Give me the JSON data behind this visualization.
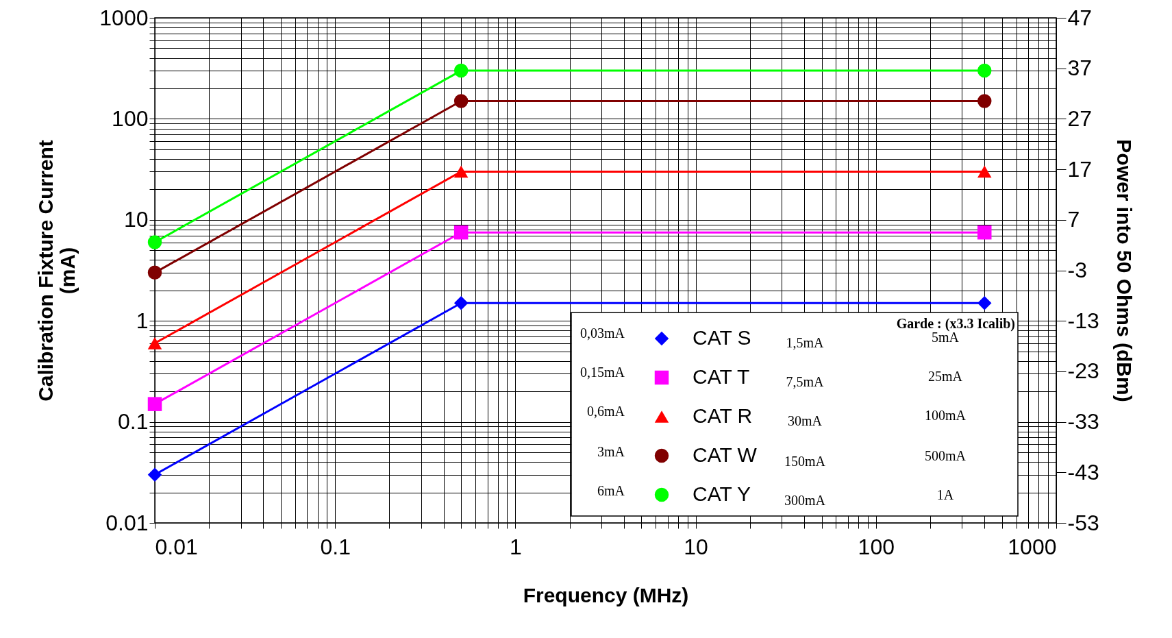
{
  "chart_data": {
    "type": "line",
    "xlabel": "Frequency (MHz)",
    "ylabel": "Calibration Fixture Current (mA)",
    "y2label": "Power into 50 Ohms (dBm)",
    "x": [
      0.01,
      0.5,
      400
    ],
    "series": [
      {
        "name": "CAT S",
        "color": "#0000ff",
        "marker": "diamond",
        "values": [
          0.03,
          1.5,
          1.5
        ]
      },
      {
        "name": "CAT T",
        "color": "#ff00ff",
        "marker": "square",
        "values": [
          0.15,
          7.5,
          7.5
        ]
      },
      {
        "name": "CAT R",
        "color": "#ff0000",
        "marker": "triangle",
        "values": [
          0.6,
          30,
          30
        ]
      },
      {
        "name": "CAT W",
        "color": "#800000",
        "marker": "circle",
        "values": [
          3,
          150,
          150
        ]
      },
      {
        "name": "CAT Y",
        "color": "#00ff00",
        "marker": "circle",
        "values": [
          6,
          300,
          300
        ]
      }
    ],
    "log": "xy",
    "grid": true,
    "legend": "bottom right",
    "line_style": "solid",
    "xlim": [
      0.01,
      1000
    ],
    "xticks": [
      0.01,
      {
        "value": 0.02,
        "label": null
      },
      {
        "value": 0.03,
        "label": null
      },
      {
        "value": 0.04,
        "label": null
      },
      {
        "value": 0.05,
        "label": null
      },
      {
        "value": 0.06,
        "label": null
      },
      {
        "value": 0.07,
        "label": null
      },
      {
        "value": 0.08,
        "label": null
      },
      {
        "value": 0.09,
        "label": null
      },
      0.1,
      {
        "value": 0.2,
        "label": null
      },
      {
        "value": 0.3,
        "label": null
      },
      {
        "value": 0.4,
        "label": null
      },
      {
        "value": 0.5,
        "label": null
      },
      {
        "value": 0.6,
        "label": null
      },
      {
        "value": 0.7,
        "label": null
      },
      {
        "value": 0.8,
        "label": null
      },
      {
        "value": 0.9,
        "label": null
      },
      1,
      {
        "value": 2,
        "label": null
      },
      {
        "value": 3,
        "label": null
      },
      {
        "value": 4,
        "label": null
      },
      {
        "value": 5,
        "label": null
      },
      {
        "value": 6,
        "label": null
      },
      {
        "value": 7,
        "label": null
      },
      {
        "value": 8,
        "label": null
      },
      {
        "value": 9,
        "label": null
      },
      10,
      {
        "value": 20,
        "label": null
      },
      {
        "value": 30,
        "label": null
      },
      {
        "value": 40,
        "label": null
      },
      {
        "value": 50,
        "label": null
      },
      {
        "value": 60,
        "label": null
      },
      {
        "value": 70,
        "label": null
      },
      {
        "value": 80,
        "label": null
      },
      {
        "value": 90,
        "label": null
      },
      100,
      {
        "value": 200,
        "label": null
      },
      {
        "value": 300,
        "label": null
      },
      {
        "value": 400,
        "label": null
      },
      {
        "value": 500,
        "label": null
      },
      {
        "value": 600,
        "label": null
      },
      {
        "value": 700,
        "label": null
      },
      {
        "value": 800,
        "label": null
      },
      {
        "value": 900,
        "label": null
      },
      1000
    ],
    "ylim": [
      0.01,
      1000
    ],
    "yticks": [
      0.01,
      {
        "value": 0.02,
        "label": null
      },
      {
        "value": 0.03,
        "label": null
      },
      {
        "value": 0.04,
        "label": null
      },
      {
        "value": 0.05,
        "label": null
      },
      {
        "value": 0.06,
        "label": null
      },
      {
        "value": 0.07,
        "label": null
      },
      {
        "value": 0.08,
        "label": null
      },
      {
        "value": 0.09,
        "label": null
      },
      0.1,
      {
        "value": 0.2,
        "label": null
      },
      {
        "value": 0.3,
        "label": null
      },
      {
        "value": 0.4,
        "label": null
      },
      {
        "value": 0.5,
        "label": null
      },
      {
        "value": 0.6,
        "label": null
      },
      {
        "value": 0.7,
        "label": null
      },
      {
        "value": 0.8,
        "label": null
      },
      {
        "value": 0.9,
        "label": null
      },
      1,
      {
        "value": 2,
        "label": null
      },
      {
        "value": 3,
        "label": null
      },
      {
        "value": 4,
        "label": null
      },
      {
        "value": 5,
        "label": null
      },
      {
        "value": 6,
        "label": null
      },
      {
        "value": 7,
        "label": null
      },
      {
        "value": 8,
        "label": null
      },
      {
        "value": 9,
        "label": null
      },
      10,
      {
        "value": 20,
        "label": null
      },
      {
        "value": 30,
        "label": null
      },
      {
        "value": 40,
        "label": null
      },
      {
        "value": 50,
        "label": null
      },
      {
        "value": 60,
        "label": null
      },
      {
        "value": 70,
        "label": null
      },
      {
        "value": 80,
        "label": null
      },
      {
        "value": 90,
        "label": null
      },
      100,
      {
        "value": 200,
        "label": null
      },
      {
        "value": 300,
        "label": null
      },
      {
        "value": 400,
        "label": null
      },
      {
        "value": 500,
        "label": null
      },
      {
        "value": 600,
        "label": null
      },
      {
        "value": 700,
        "label": null
      },
      {
        "value": 800,
        "label": null
      },
      {
        "value": 900,
        "label": null
      },
      1000
    ],
    "y2lim": [
      -53,
      47
    ],
    "y2ticks": [
      -53,
      -43,
      -33,
      -23,
      -13,
      -3,
      7,
      17,
      27,
      37,
      47
    ],
    "annotations": [
      "Garde : (x3.3 Icalib)",
      "0,03mA",
      "1,5mA",
      "5mA",
      "0,15mA",
      "7,5mA",
      "25mA",
      "0,6mA",
      "30mA",
      "100mA",
      "3mA",
      "150mA",
      "500mA",
      "6mA",
      "300mA",
      "1A"
    ]
  }
}
